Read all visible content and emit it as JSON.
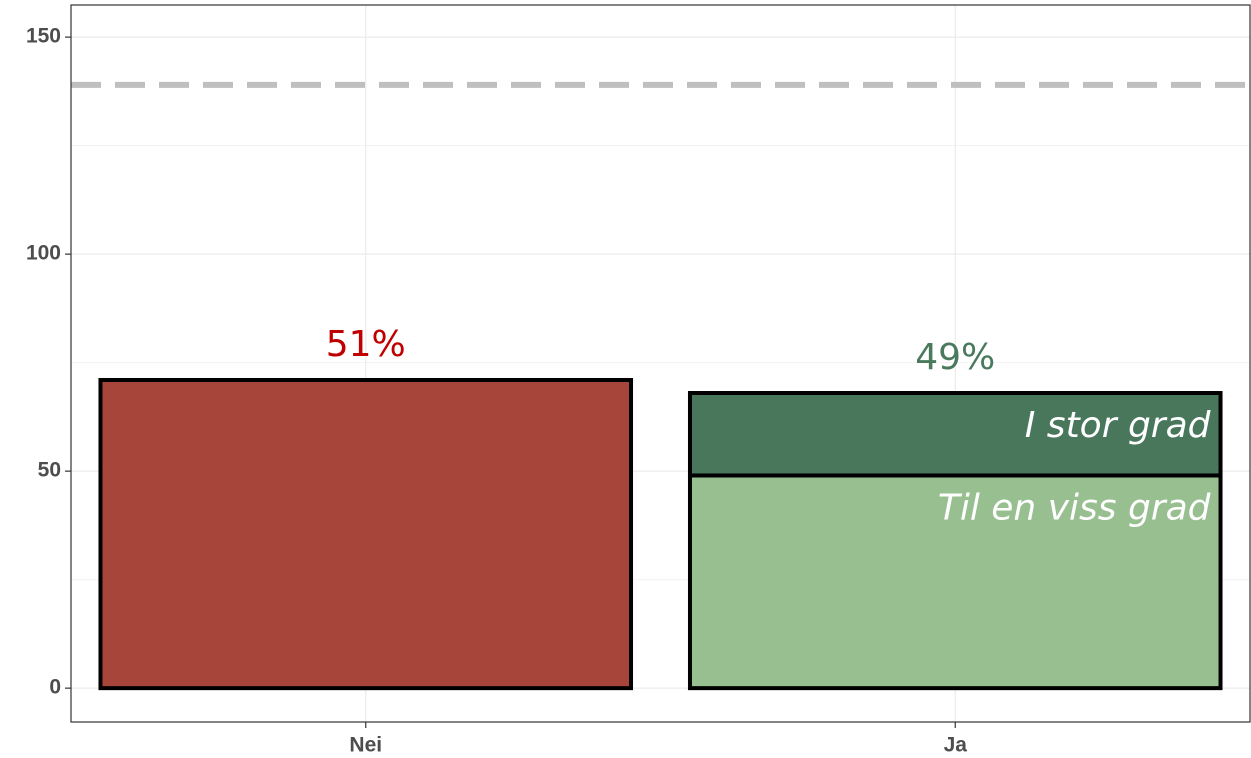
{
  "chart_data": {
    "type": "stacked_bar",
    "categories": [
      "Nei",
      "Ja"
    ],
    "series": [
      {
        "color": "#a8453b",
        "values": [
          71,
          null
        ]
      },
      {
        "name": "Til en viss grad",
        "color": "#98bf90",
        "values": [
          null,
          49
        ]
      },
      {
        "name": "I stor grad",
        "color": "#48775c",
        "values": [
          null,
          19
        ]
      }
    ],
    "annotations": [
      {
        "text": "51%",
        "category": 0,
        "color": "#c00000"
      },
      {
        "text": "49%",
        "category": 1,
        "color": "#4a7a5e"
      }
    ],
    "hline": {
      "value": 139,
      "color": "#bfbfbf",
      "dashed": true
    },
    "ylim": [
      -7.8,
      157.4
    ],
    "yticks": [
      0,
      50,
      100,
      150
    ],
    "grid": true
  }
}
